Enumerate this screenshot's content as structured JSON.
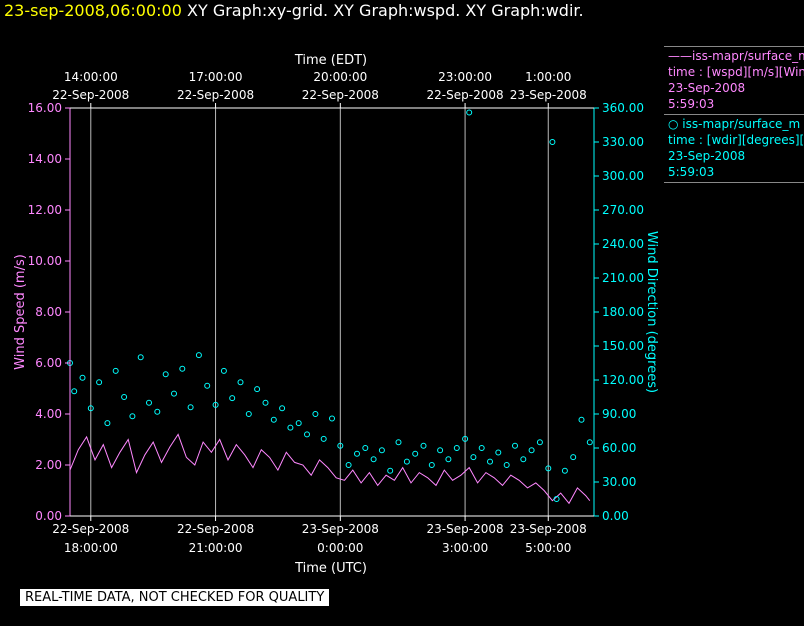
{
  "header": {
    "timestamp": "23-sep-2008,06:00:00",
    "graphs": " XY Graph:xy-grid.  XY Graph:wspd.  XY Graph:wdir."
  },
  "legend": {
    "wspd": {
      "line1": "——iss-mapr/surface_m",
      "line2": "time : [wspd][m/s][Wind",
      "line3": "23-Sep-2008",
      "line4": "5:59:03",
      "color": "#ff88ff"
    },
    "wdir": {
      "line1": "○ iss-mapr/surface_m",
      "line2": "time : [wdir][degrees][W",
      "line3": "23-Sep-2008",
      "line4": "5:59:03",
      "color": "#00ffff"
    }
  },
  "badge": "REAL-TIME DATA, NOT CHECKED FOR QUALITY",
  "chart_data": {
    "type": "line",
    "title": "",
    "xlabel_bottom": "Time (UTC)",
    "xlabel_top": "Time (EDT)",
    "ylabel_left": "Wind Speed (m/s)",
    "ylabel_right": "Wind Direction (degrees)",
    "x_range_utc_hours": [
      17.5,
      30.1
    ],
    "ylim_left": [
      0,
      16
    ],
    "ylim_right": [
      0,
      360
    ],
    "grid": "vertical",
    "legend_position": "top-right",
    "bottom_ticks": [
      {
        "t": 18,
        "l1": "22-Sep-2008",
        "l2": "18:00:00"
      },
      {
        "t": 21,
        "l1": "22-Sep-2008",
        "l2": "21:00:00"
      },
      {
        "t": 24,
        "l1": "23-Sep-2008",
        "l2": "0:00:00"
      },
      {
        "t": 27,
        "l1": "23-Sep-2008",
        "l2": "3:00:00"
      },
      {
        "t": 29,
        "l1": "23-Sep-2008",
        "l2": "5:00:00"
      }
    ],
    "top_ticks": [
      {
        "t": 18,
        "l1": "14:00:00",
        "l2": "22-Sep-2008"
      },
      {
        "t": 21,
        "l1": "17:00:00",
        "l2": "22-Sep-2008"
      },
      {
        "t": 24,
        "l1": "20:00:00",
        "l2": "22-Sep-2008"
      },
      {
        "t": 27,
        "l1": "23:00:00",
        "l2": "22-Sep-2008"
      },
      {
        "t": 29,
        "l1": "1:00:00",
        "l2": "23-Sep-2008"
      }
    ],
    "left_ticks": [
      "0.00",
      "2.00",
      "4.00",
      "6.00",
      "8.00",
      "10.00",
      "12.00",
      "14.00",
      "16.00"
    ],
    "right_ticks": [
      "0.00",
      "30.00",
      "60.00",
      "90.00",
      "120.00",
      "150.00",
      "180.00",
      "210.00",
      "240.00",
      "270.00",
      "300.00",
      "330.00",
      "360.00"
    ],
    "series": [
      {
        "name": "iss-mapr/surface_m time : [wspd][m/s]",
        "axis": "left",
        "color": "#ff88ff",
        "style": "line",
        "x_utc_hours": [
          17.5,
          17.7,
          17.9,
          18.1,
          18.3,
          18.5,
          18.7,
          18.9,
          19.1,
          19.3,
          19.5,
          19.7,
          19.9,
          20.1,
          20.3,
          20.5,
          20.7,
          20.9,
          21.1,
          21.3,
          21.5,
          21.7,
          21.9,
          22.1,
          22.3,
          22.5,
          22.7,
          22.9,
          23.1,
          23.3,
          23.5,
          23.7,
          23.9,
          24.1,
          24.3,
          24.5,
          24.7,
          24.9,
          25.1,
          25.3,
          25.5,
          25.7,
          25.9,
          26.1,
          26.3,
          26.5,
          26.7,
          26.9,
          27.1,
          27.3,
          27.5,
          27.7,
          27.9,
          28.1,
          28.3,
          28.5,
          28.7,
          28.9,
          29.1,
          29.3,
          29.5,
          29.7,
          29.9,
          30.0
        ],
        "values": [
          1.8,
          2.6,
          3.1,
          2.2,
          2.8,
          1.9,
          2.5,
          3.0,
          1.7,
          2.4,
          2.9,
          2.1,
          2.7,
          3.2,
          2.3,
          2.0,
          2.9,
          2.5,
          3.0,
          2.2,
          2.8,
          2.4,
          1.9,
          2.6,
          2.3,
          1.8,
          2.5,
          2.1,
          2.0,
          1.6,
          2.2,
          1.9,
          1.5,
          1.4,
          1.8,
          1.3,
          1.7,
          1.2,
          1.6,
          1.4,
          1.9,
          1.3,
          1.7,
          1.5,
          1.2,
          1.8,
          1.4,
          1.6,
          1.9,
          1.3,
          1.7,
          1.5,
          1.2,
          1.6,
          1.4,
          1.1,
          1.3,
          1.0,
          0.6,
          0.9,
          0.5,
          1.1,
          0.8,
          0.6
        ]
      },
      {
        "name": "iss-mapr/surface_m time : [wdir][degrees]",
        "axis": "right",
        "color": "#00ffff",
        "style": "markers",
        "x_utc_hours": [
          17.5,
          17.6,
          17.8,
          18.0,
          18.2,
          18.4,
          18.6,
          18.8,
          19.0,
          19.2,
          19.4,
          19.6,
          19.8,
          20.0,
          20.2,
          20.4,
          20.6,
          20.8,
          21.0,
          21.2,
          21.4,
          21.6,
          21.8,
          22.0,
          22.2,
          22.4,
          22.6,
          22.8,
          23.0,
          23.2,
          23.4,
          23.6,
          23.8,
          24.0,
          24.2,
          24.4,
          24.6,
          24.8,
          25.0,
          25.2,
          25.4,
          25.6,
          25.8,
          26.0,
          26.2,
          26.4,
          26.6,
          26.8,
          27.0,
          27.1,
          27.2,
          27.4,
          27.6,
          27.8,
          28.0,
          28.2,
          28.4,
          28.6,
          28.8,
          29.0,
          29.1,
          29.2,
          29.4,
          29.6,
          29.8,
          30.0
        ],
        "values": [
          135,
          110,
          122,
          95,
          118,
          82,
          128,
          105,
          88,
          140,
          100,
          92,
          125,
          108,
          130,
          96,
          142,
          115,
          98,
          128,
          104,
          118,
          90,
          112,
          100,
          85,
          95,
          78,
          82,
          72,
          90,
          68,
          86,
          62,
          45,
          55,
          60,
          50,
          58,
          40,
          65,
          48,
          55,
          62,
          45,
          58,
          50,
          60,
          68,
          356,
          52,
          60,
          48,
          56,
          45,
          62,
          50,
          58,
          65,
          42,
          330,
          15,
          40,
          52,
          85,
          65
        ]
      }
    ]
  }
}
